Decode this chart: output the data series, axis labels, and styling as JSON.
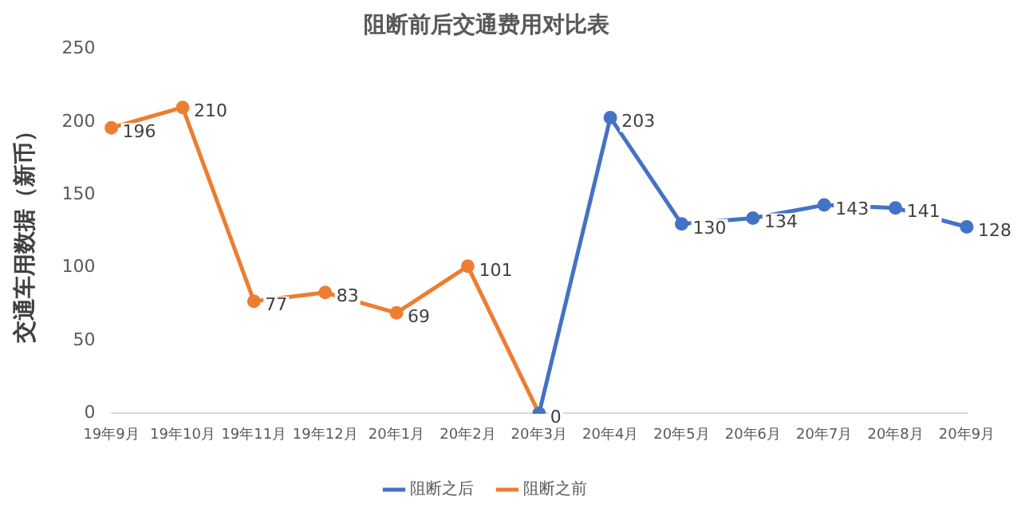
{
  "chart_data": {
    "type": "line",
    "title": "阻断前后交通费用对比表",
    "ylabel": "交通车用数据（新币）",
    "categories": [
      "19年9月",
      "19年10月",
      "19年11月",
      "19年12月",
      "20年1月",
      "20年2月",
      "20年3月",
      "20年4月",
      "20年5月",
      "20年6月",
      "20年7月",
      "20年8月",
      "20年9月"
    ],
    "series": [
      {
        "name": "阻断之后",
        "color": "#4472c4",
        "values": [
          null,
          null,
          null,
          null,
          null,
          null,
          0,
          203,
          130,
          134,
          143,
          141,
          128
        ],
        "value_labels": [
          null,
          null,
          null,
          null,
          null,
          null,
          null,
          "203",
          "130",
          "134",
          "143",
          "141",
          "128"
        ]
      },
      {
        "name": "阻断之前",
        "color": "#ed7d31",
        "values": [
          196,
          210,
          77,
          83,
          69,
          101,
          0,
          null,
          null,
          null,
          null,
          null,
          null
        ],
        "value_labels": [
          "196",
          "210",
          "77",
          "83",
          "69",
          "101",
          "0",
          null,
          null,
          null,
          null,
          null,
          null
        ]
      }
    ],
    "ylim": [
      0,
      250
    ],
    "yticks": [
      0,
      50,
      100,
      150,
      200,
      250
    ],
    "grid": false,
    "legend": "bottom",
    "marker": "circle",
    "line_style": "solid"
  }
}
